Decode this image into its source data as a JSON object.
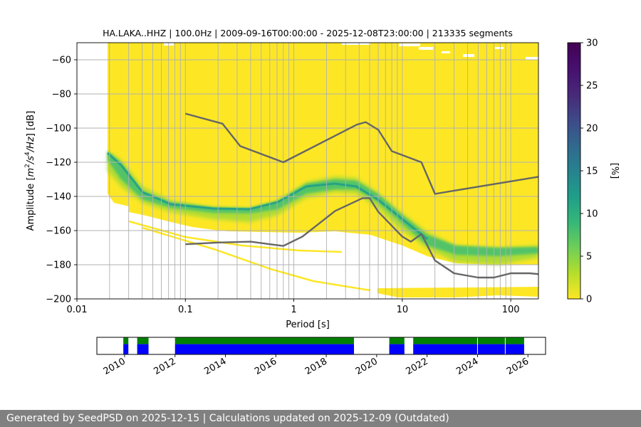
{
  "chart_data": [
    {
      "type": "heatmap",
      "title": "HA.LAKA..HHZ | 100.0Hz | 2009-09-16T00:00:00 - 2025-12-08T23:00:00 | 213335 segments",
      "xlabel": "Period [s]",
      "ylabel": "Amplitude [m²/s⁴/Hz] [dB]",
      "xscale": "log",
      "xlim": [
        0.01,
        180
      ],
      "ylim": [
        -200,
        -50
      ],
      "x_ticks": [
        0.01,
        0.1,
        1,
        10,
        100
      ],
      "x_tick_labels": [
        "0.01",
        "0.1",
        "1",
        "10",
        "100"
      ],
      "y_ticks": [
        -200,
        -180,
        -160,
        -140,
        -120,
        -100,
        -80,
        -60
      ],
      "y_tick_labels": [
        "−200",
        "−180",
        "−160",
        "−140",
        "−120",
        "−100",
        "−80",
        "−60"
      ],
      "grid": true,
      "colorbar": {
        "label": "[%]",
        "range": [
          0,
          30
        ],
        "ticks": [
          0,
          5,
          10,
          15,
          20,
          25,
          30
        ],
        "tick_labels": [
          "0",
          "5",
          "10",
          "15",
          "20",
          "25",
          "30"
        ],
        "colormap": "viridis"
      },
      "series": [
        {
          "name": "",
          "color": "#666666",
          "x": [
            0.1,
            0.22,
            0.32,
            0.8,
            3.8,
            4.6,
            6.0,
            8.0,
            15.0,
            20.0,
            180.0
          ],
          "y": [
            -91.5,
            -97.4,
            -110.5,
            -120.0,
            -98.0,
            -96.5,
            -101.0,
            -113.5,
            -120.0,
            -138.5,
            -128.5
          ]
        },
        {
          "name": "",
          "color": "#666666",
          "x": [
            0.1,
            0.2,
            0.4,
            0.8,
            1.2,
            2.4,
            4.3,
            5.0,
            6.0,
            10.0,
            12.0,
            15.0,
            20.0,
            30.0,
            50.0,
            70.0,
            100.0,
            150.0,
            180.0
          ],
          "y": [
            -168.0,
            -167.0,
            -166.5,
            -169.0,
            -163.5,
            -148.5,
            -141.0,
            -141.0,
            -149.0,
            -163.5,
            -166.5,
            -162.0,
            -177.5,
            -185.0,
            -187.5,
            -187.5,
            -185.0,
            -185.0,
            -185.5
          ]
        }
      ]
    },
    {
      "type": "bar",
      "title": "",
      "xlabel": "",
      "ylabel": "",
      "xlim": [
        2008.9,
        2026.7
      ],
      "x_ticks": [
        2010,
        2012,
        2014,
        2016,
        2018,
        2020,
        2022,
        2024,
        2026
      ],
      "x_tick_labels": [
        "2010",
        "2012",
        "2014",
        "2016",
        "2018",
        "2020",
        "2022",
        "2024",
        "2026"
      ],
      "series": [
        {
          "name": "",
          "color": "#008000",
          "intervals": [
            [
              2009.95,
              2010.15
            ],
            [
              2010.5,
              2010.95
            ],
            [
              2012.0,
              2019.1
            ],
            [
              2020.5,
              2021.1
            ],
            [
              2021.45,
              2024.0
            ],
            [
              2024.0,
              2025.1
            ],
            [
              2025.1,
              2025.85
            ]
          ]
        },
        {
          "name": "",
          "color": "#0000ff",
          "intervals": [
            [
              2009.95,
              2010.15
            ],
            [
              2010.5,
              2010.95
            ],
            [
              2012.0,
              2019.1
            ],
            [
              2020.5,
              2021.1
            ],
            [
              2021.45,
              2024.0
            ],
            [
              2024.0,
              2025.1
            ],
            [
              2025.1,
              2025.85
            ]
          ]
        }
      ]
    }
  ],
  "footer": {
    "text": "Generated by SeedPSD on 2025-12-15 | Calculations updated on 2025-12-09 (Outdated)"
  }
}
